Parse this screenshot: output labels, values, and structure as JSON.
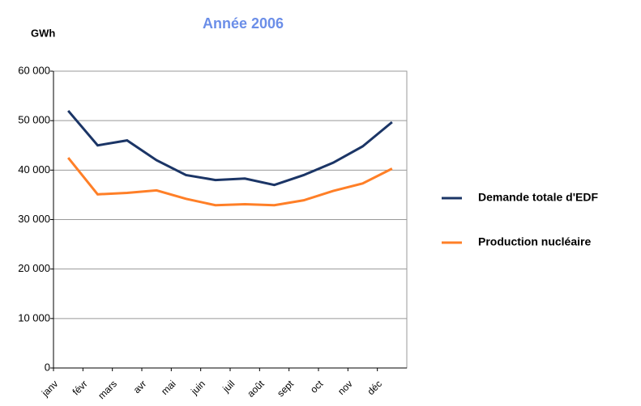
{
  "chart_data": {
    "type": "line",
    "title": "Année 2006",
    "y_label": "GWh",
    "categories": [
      "janv",
      "févr",
      "mars",
      "avr",
      "mai",
      "juin",
      "juil",
      "août",
      "sept",
      "oct",
      "nov",
      "déc"
    ],
    "series": [
      {
        "name": "Demande totale d'EDF",
        "color": "#1b3566",
        "values": [
          52000,
          45000,
          46000,
          42000,
          39000,
          38000,
          38300,
          37000,
          39000,
          41500,
          44800,
          49700
        ]
      },
      {
        "name": "Production nucléaire",
        "color": "#ff7f27",
        "values": [
          42500,
          35100,
          35400,
          35900,
          34200,
          32900,
          33100,
          32900,
          33900,
          35800,
          37300,
          40300
        ]
      }
    ],
    "ylim": [
      0,
      60000
    ],
    "yticks": [
      {
        "value": 0,
        "label": "0"
      },
      {
        "value": 10000,
        "label": "10 000"
      },
      {
        "value": 20000,
        "label": "20 000"
      },
      {
        "value": 30000,
        "label": "30 000"
      },
      {
        "value": 40000,
        "label": "40 000"
      },
      {
        "value": 50000,
        "label": "50 000"
      },
      {
        "value": 60000,
        "label": "60 000"
      }
    ],
    "grid": true,
    "legend": "right"
  }
}
